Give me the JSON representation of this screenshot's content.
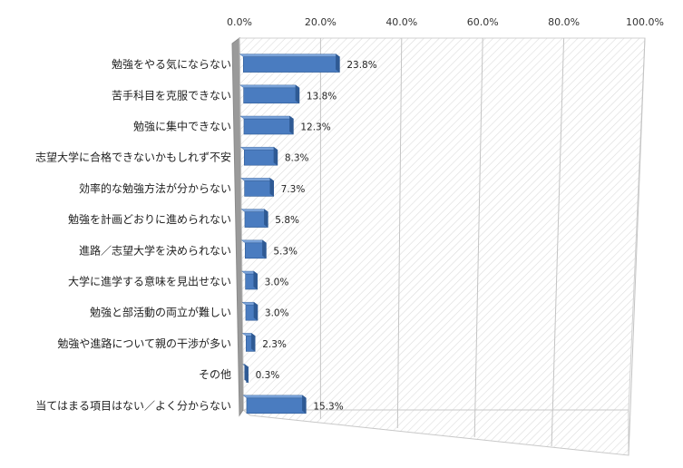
{
  "chart_data": {
    "type": "bar",
    "orientation": "horizontal",
    "style": "3d",
    "categories": [
      "勉強をやる気にならない",
      "苦手科目を克服できない",
      "勉強に集中できない",
      "志望大学に合格できないかもしれず不安",
      "効率的な勉強方法が分からない",
      "勉強を計画どおりに進められない",
      "進路／志望大学を決められない",
      "大学に進学する意味を見出せない",
      "勉強と部活動の両立が難しい",
      "勉強や進路について親の干渉が多い",
      "その他",
      "当てはまる項目はない／よく分からない"
    ],
    "values": [
      23.8,
      13.8,
      12.3,
      8.3,
      7.3,
      5.8,
      5.3,
      3.0,
      3.0,
      2.3,
      0.3,
      15.3
    ],
    "value_labels": [
      "23.8%",
      "13.8%",
      "12.3%",
      "8.3%",
      "7.3%",
      "5.8%",
      "5.3%",
      "3.0%",
      "3.0%",
      "2.3%",
      "0.3%",
      "15.3%"
    ],
    "x_ticks": [
      "0.0%",
      "20.0%",
      "40.0%",
      "60.0%",
      "80.0%",
      "100.0%"
    ],
    "xlim": [
      0,
      100
    ],
    "axis_position": "top",
    "grid": true,
    "legend": "none",
    "bar_color": "#4a7cc0",
    "bar_top_color": "#7aa3da",
    "bar_side_color": "#2f5a94"
  }
}
